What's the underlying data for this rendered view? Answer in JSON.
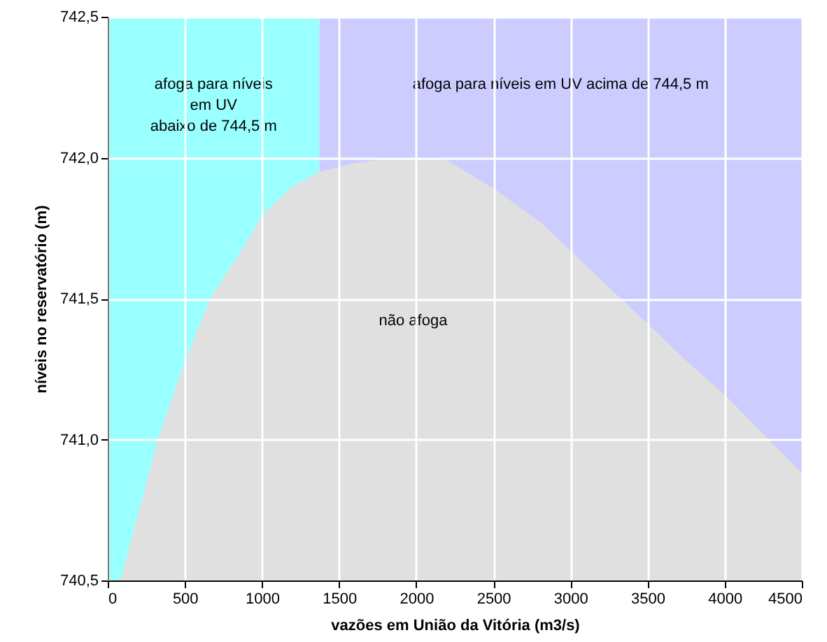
{
  "chart_data": {
    "type": "area",
    "xlabel": "vazões em União da Vitória (m3/s)",
    "ylabel": "níveis no reservatório (m)",
    "xlim": [
      0,
      4500
    ],
    "ylim": [
      740.5,
      742.5
    ],
    "xticks": [
      0,
      500,
      1000,
      1500,
      2000,
      2500,
      3000,
      3500,
      4000,
      4500
    ],
    "yticks": [
      {
        "value": 740.5,
        "label": "740,5"
      },
      {
        "value": 741,
        "label": "741,0"
      },
      {
        "value": 741.5,
        "label": "741,5"
      },
      {
        "value": 742,
        "label": "742,0"
      },
      {
        "value": 742.5,
        "label": "742,5"
      }
    ],
    "grid": true,
    "series": [
      {
        "color": "#e0e0e0",
        "x": [
          82,
          324,
          496,
          662,
          843,
          1009,
          1200,
          1372,
          1598,
          1870,
          2203,
          2505,
          2808,
          3019,
          3250,
          3502,
          3750,
          4016,
          4250,
          4500
        ],
        "values": [
          740.5,
          741.0,
          741.27,
          741.5,
          741.65,
          741.8,
          741.9,
          741.95,
          741.98,
          742.0,
          741.99,
          741.89,
          741.77,
          741.66,
          741.54,
          741.41,
          741.28,
          741.15,
          741.02,
          740.88
        ]
      }
    ],
    "bands": [
      {
        "axis": "x",
        "from": 0,
        "to": 1372,
        "label": "afoga para níveis\nem UV\nabaixo de 744,5 m",
        "color": "#99ffff"
      },
      {
        "axis": "x",
        "from": 1372,
        "to": 4500,
        "label": "afoga para níveis em UV acima de 744,5 m",
        "color": "#ccccff"
      }
    ],
    "annotations": [
      "não afoga"
    ]
  }
}
